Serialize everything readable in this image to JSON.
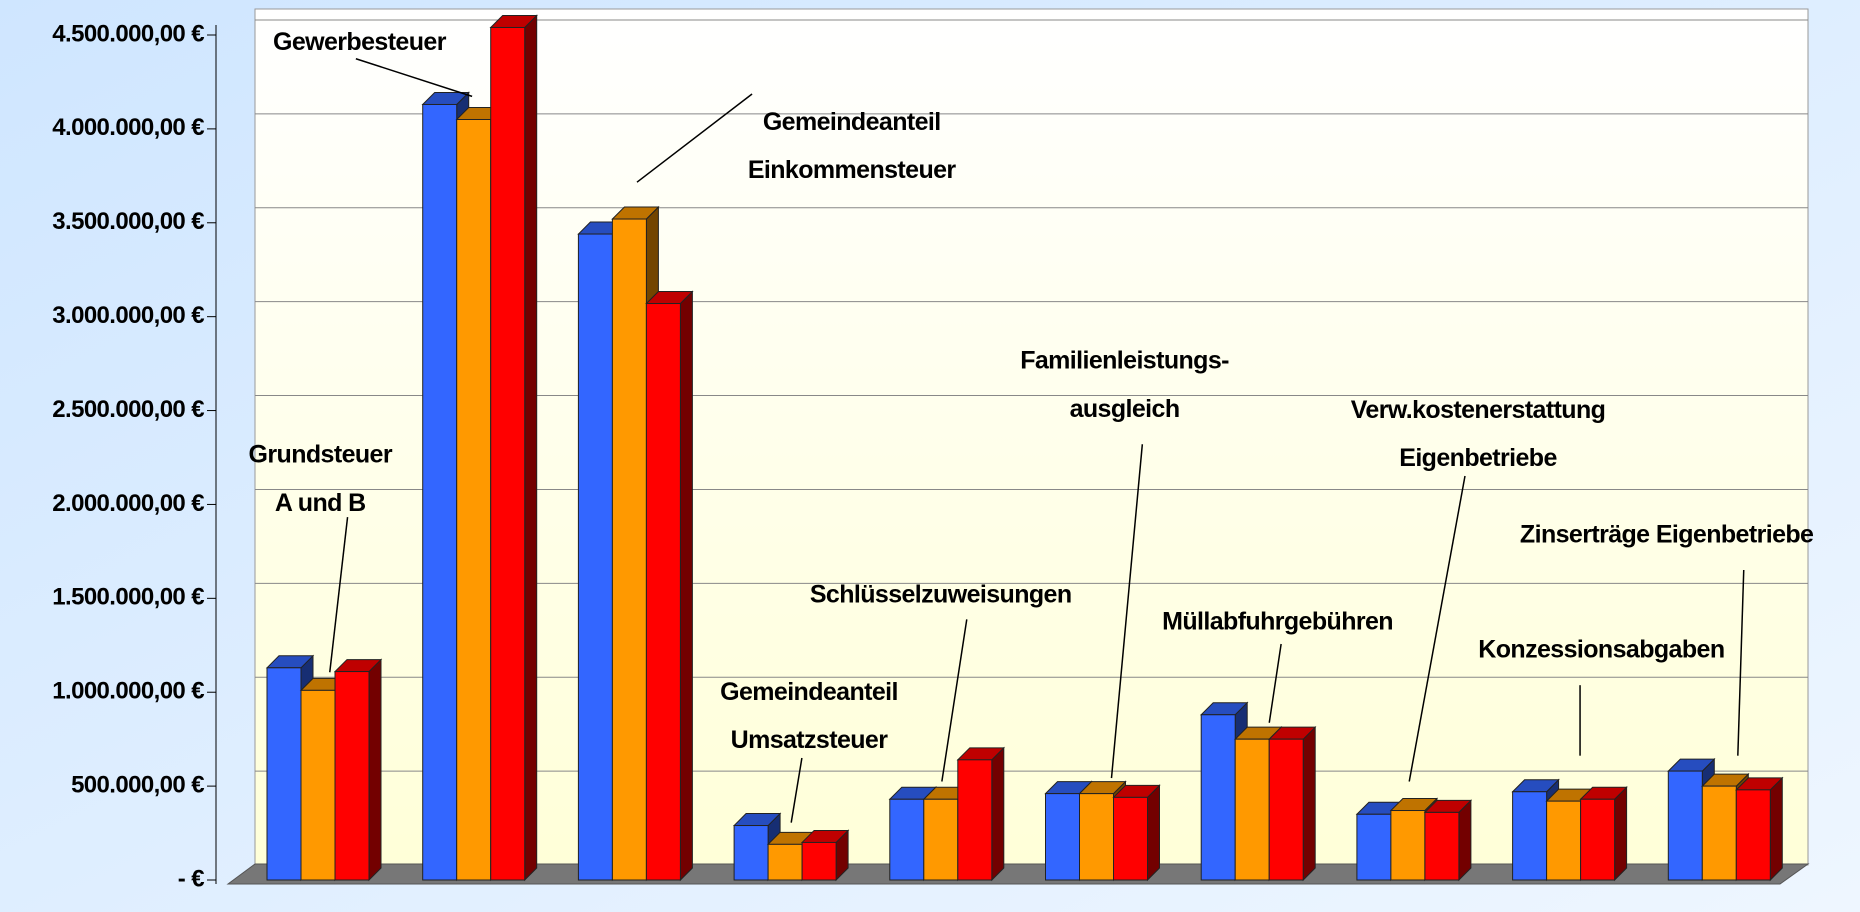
{
  "chart_data": {
    "type": "bar3d",
    "categories": [
      [
        "Grundsteuer",
        "A und B"
      ],
      [
        "Gewerbesteuer"
      ],
      [
        "Gemeindeanteil",
        "Einkommensteuer"
      ],
      [
        "Gemeindeanteil",
        "Umsatzsteuer"
      ],
      [
        "Schlüsselzuweisungen"
      ],
      [
        "Familienleistungs-",
        "ausgleich"
      ],
      [
        "Müllabfuhrgebühren"
      ],
      [
        "Verw.kostenerstattung",
        "Eigenbetriebe"
      ],
      [
        "Konzessionsabgaben"
      ],
      [
        "Zinserträge Eigenbetriebe"
      ]
    ],
    "series": [
      {
        "color": "#3366ff",
        "values": [
          1130000,
          4130000,
          3440000,
          290000,
          430000,
          460000,
          880000,
          350000,
          470000,
          580000
        ]
      },
      {
        "color": "#ff9900",
        "values": [
          1010000,
          4050000,
          3520000,
          190000,
          430000,
          460000,
          750000,
          370000,
          420000,
          500000
        ]
      },
      {
        "color": "#ff0000",
        "values": [
          1110000,
          4540000,
          3070000,
          200000,
          640000,
          440000,
          750000,
          360000,
          430000,
          480000
        ]
      }
    ],
    "ylim": [
      0,
      4500000
    ],
    "yticks": [
      {
        "value": 0,
        "label": "-   €"
      },
      {
        "value": 500000,
        "label": "500.000,00 €"
      },
      {
        "value": 1000000,
        "label": "1.000.000,00 €"
      },
      {
        "value": 1500000,
        "label": "1.500.000,00 €"
      },
      {
        "value": 2000000,
        "label": "2.000.000,00 €"
      },
      {
        "value": 2500000,
        "label": "2.500.000,00 €"
      },
      {
        "value": 3000000,
        "label": "3.000.000,00 €"
      },
      {
        "value": 3500000,
        "label": "3.500.000,00 €"
      },
      {
        "value": 4000000,
        "label": "4.000.000,00 €"
      },
      {
        "value": 4500000,
        "label": "4.500.000,00 €"
      }
    ],
    "grid": true
  }
}
